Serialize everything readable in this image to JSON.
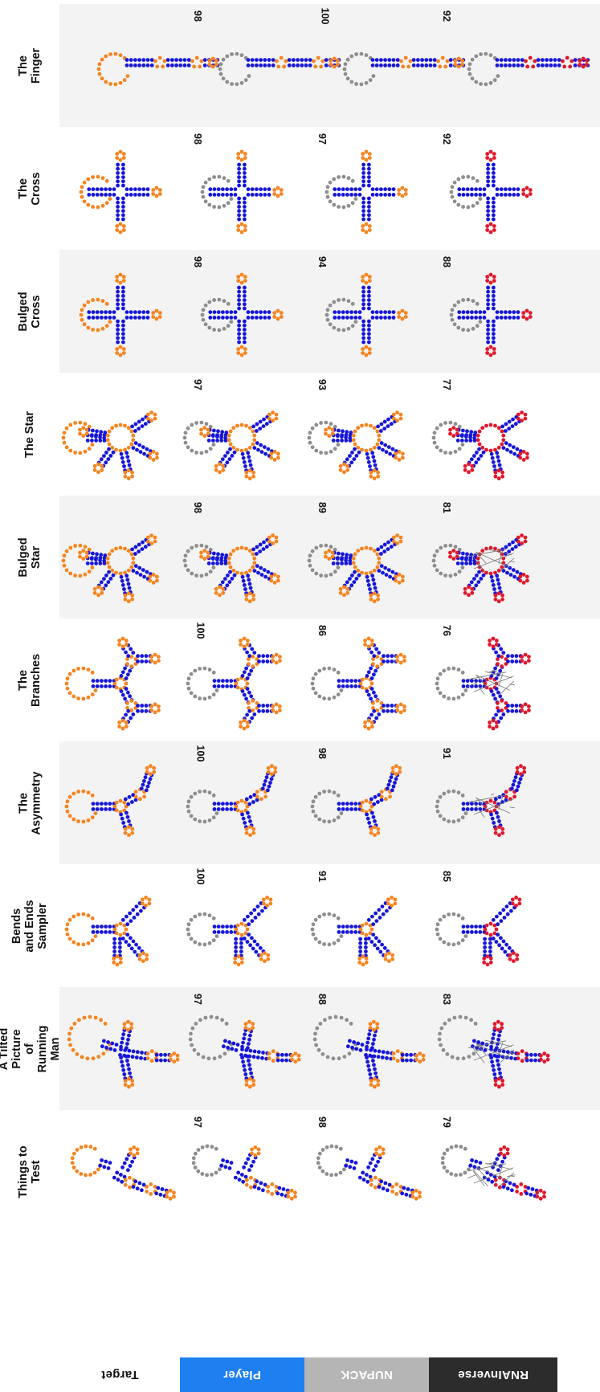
{
  "rows": [
    {
      "label": "Target",
      "bg": "#ffffff",
      "fg": "#111111"
    },
    {
      "label": "Player",
      "bg": "#1e7ff0",
      "fg": "#ffffff"
    },
    {
      "label": "NUPACK",
      "bg": "#b5b5b5",
      "fg": "#ffffff"
    },
    {
      "label": "RNAInverse",
      "bg": "#2c2c2c",
      "fg": "#ffffff"
    }
  ],
  "colors": {
    "paired": "#1616d8",
    "unpaired": "#f5841f",
    "neutral": "#8e8e8e",
    "mismatch": "#e0182b"
  },
  "puzzles": [
    {
      "title": "The\nFinger",
      "scores": [
        "98",
        "100",
        "92"
      ],
      "shape": "finger"
    },
    {
      "title": "The\nCross",
      "scores": [
        "98",
        "97",
        "92"
      ],
      "shape": "cross"
    },
    {
      "title": "Bulged Cross",
      "scores": [
        "98",
        "94",
        "88"
      ],
      "shape": "cross"
    },
    {
      "title": "The Star",
      "scores": [
        "97",
        "93",
        "77"
      ],
      "shape": "star"
    },
    {
      "title": "Bulged\nStar",
      "scores": [
        "98",
        "89",
        "81"
      ],
      "shape": "star"
    },
    {
      "title": "The Branches",
      "scores": [
        "100",
        "86",
        "76"
      ],
      "shape": "branches"
    },
    {
      "title": "The Asymmetry",
      "scores": [
        "100",
        "98",
        "91"
      ],
      "shape": "asym"
    },
    {
      "title": "Bends and Ends\nSampler",
      "scores": [
        "100",
        "91",
        "85"
      ],
      "shape": "bends"
    },
    {
      "title": "A Tilted Picture\nof Running Man",
      "scores": [
        "97",
        "88",
        "83"
      ],
      "shape": "man"
    },
    {
      "title": "Things to Test",
      "scores": [
        "97",
        "98",
        "79"
      ],
      "shape": "things"
    }
  ]
}
